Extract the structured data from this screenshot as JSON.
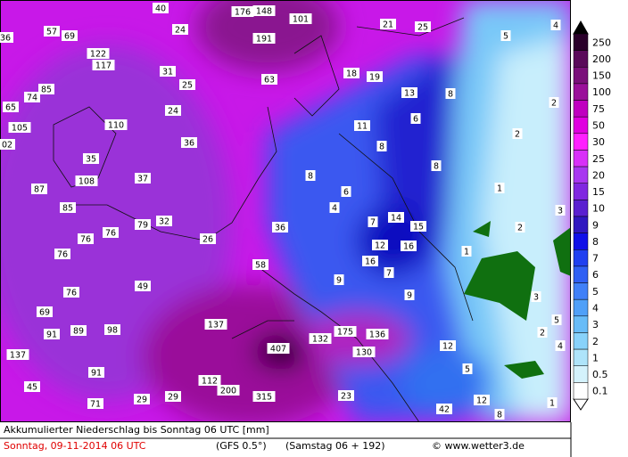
{
  "map": {
    "labels": [
      "40",
      "176",
      "148",
      "101",
      "36",
      "57",
      "69",
      "24",
      "191",
      "21",
      "25",
      "5",
      "4",
      "122",
      "117",
      "31",
      "18",
      "19",
      "85",
      "74",
      "25",
      "63",
      "13",
      "8",
      "65",
      "24",
      "2",
      "105",
      "110",
      "11",
      "6",
      "02",
      "36",
      "2",
      "35",
      "8",
      "8",
      "108",
      "37",
      "8",
      "87",
      "6",
      "1",
      "85",
      "4",
      "3",
      "79",
      "32",
      "7",
      "14",
      "15",
      "2",
      "76",
      "76",
      "26",
      "36",
      "12",
      "16",
      "1",
      "76",
      "58",
      "16",
      "7",
      "49",
      "9",
      "76",
      "9",
      "3",
      "69",
      "137",
      "5",
      "89",
      "91",
      "98",
      "175",
      "136",
      "2",
      "132",
      "407",
      "12",
      "4",
      "137",
      "130",
      "91",
      "5",
      "112",
      "45",
      "200",
      "315",
      "23",
      "29",
      "29",
      "12",
      "71",
      "42",
      "8",
      "1"
    ]
  },
  "legend": {
    "levels": [
      {
        "value": 250,
        "color": "#2a002a"
      },
      {
        "value": 200,
        "color": "#5a0a5a"
      },
      {
        "value": 150,
        "color": "#7a107a"
      },
      {
        "value": 100,
        "color": "#9a109a"
      },
      {
        "value": 75,
        "color": "#c000c0"
      },
      {
        "value": 50,
        "color": "#e000e0"
      },
      {
        "value": 30,
        "color": "#ff20ff"
      },
      {
        "value": 25,
        "color": "#d830f8"
      },
      {
        "value": 20,
        "color": "#a838f0"
      },
      {
        "value": 15,
        "color": "#8028e0"
      },
      {
        "value": 10,
        "color": "#5a20d0"
      },
      {
        "value": 9,
        "color": "#3018c0"
      },
      {
        "value": 8,
        "color": "#1010e8"
      },
      {
        "value": 7,
        "color": "#2040f0"
      },
      {
        "value": 6,
        "color": "#3060f4"
      },
      {
        "value": 5,
        "color": "#4080f8"
      },
      {
        "value": 4,
        "color": "#50a0f8"
      },
      {
        "value": 3,
        "color": "#68bcf8"
      },
      {
        "value": 2,
        "color": "#88d2fa"
      },
      {
        "value": 1,
        "color": "#aee4fa"
      },
      {
        "value": 0.5,
        "color": "#d4f2fc"
      },
      {
        "value": 0.1,
        "color": "#ffffff"
      }
    ]
  },
  "footer": {
    "title": "Akkumulierter Niederschlag bis Sonntag 06 UTC [mm]",
    "date": "Sonntag, 09-11-2014  06 UTC",
    "model": "(GFS 0.5°)",
    "run": "(Samstag 06 + 192)",
    "credit": "© www.wetter3.de"
  }
}
